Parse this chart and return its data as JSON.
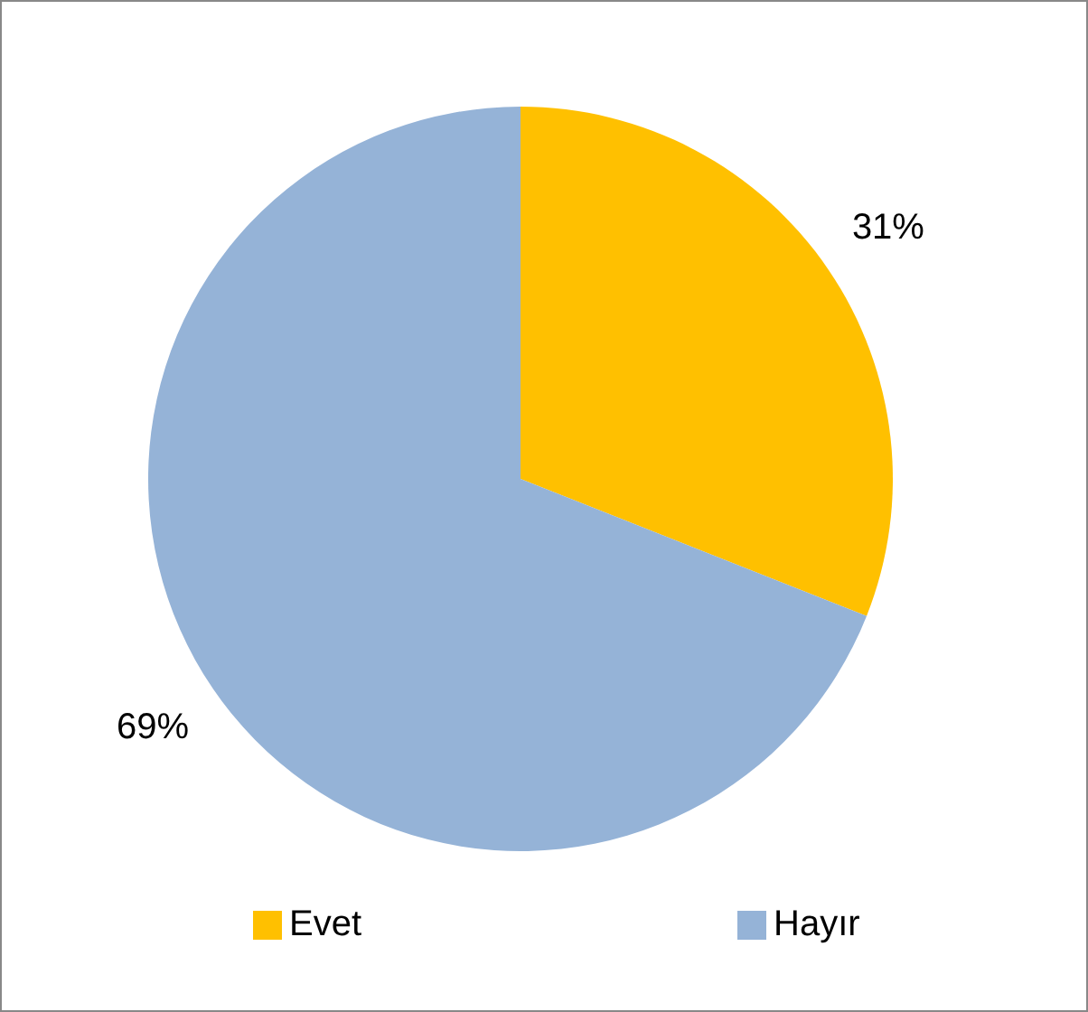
{
  "chart_data": {
    "type": "pie",
    "categories": [
      "Evet",
      "Hayır"
    ],
    "values": [
      31,
      69
    ],
    "value_labels": [
      "31%",
      "69%"
    ],
    "colors": [
      "#ffc000",
      "#95b3d7"
    ],
    "legend": "bottom"
  }
}
